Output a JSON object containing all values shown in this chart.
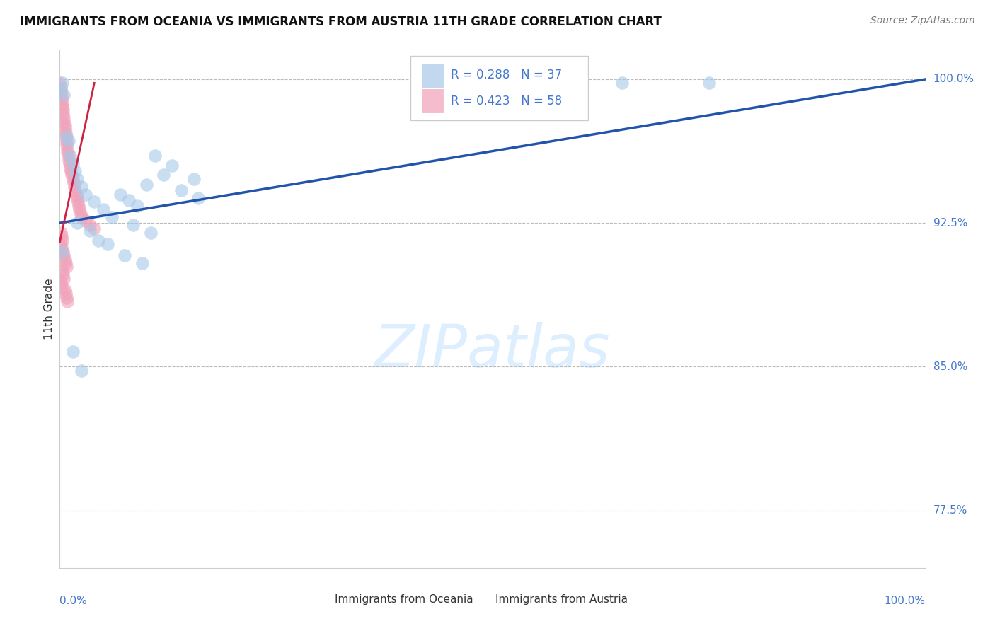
{
  "title": "IMMIGRANTS FROM OCEANIA VS IMMIGRANTS FROM AUSTRIA 11TH GRADE CORRELATION CHART",
  "source_text": "Source: ZipAtlas.com",
  "ylabel": "11th Grade",
  "legend_blue_r": "R = 0.288",
  "legend_blue_n": "N = 37",
  "legend_pink_r": "R = 0.423",
  "legend_pink_n": "N = 58",
  "legend_label_blue": "Immigrants from Oceania",
  "legend_label_pink": "Immigrants from Austria",
  "blue_color": "#a8c8e8",
  "pink_color": "#f0a0b8",
  "trendline_blue_color": "#2255aa",
  "trendline_pink_color": "#cc2244",
  "watermark_color": "#ddeeff",
  "xmin": 0.0,
  "xmax": 1.0,
  "ymin": 0.745,
  "ymax": 1.015,
  "ytick_100": 1.0,
  "ytick_925": 0.925,
  "ytick_85": 0.85,
  "ytick_775": 0.775,
  "blue_x": [
    0.001,
    0.003,
    0.005,
    0.008,
    0.01,
    0.012,
    0.015,
    0.018,
    0.02,
    0.025,
    0.03,
    0.04,
    0.05,
    0.06,
    0.07,
    0.08,
    0.09,
    0.1,
    0.12,
    0.14,
    0.16,
    0.13,
    0.11,
    0.155,
    0.02,
    0.035,
    0.045,
    0.055,
    0.075,
    0.095,
    0.65,
    0.75,
    0.015,
    0.025,
    0.085,
    0.105,
    0.003
  ],
  "blue_y": [
    0.995,
    0.998,
    0.992,
    0.97,
    0.968,
    0.96,
    0.956,
    0.952,
    0.948,
    0.944,
    0.94,
    0.936,
    0.932,
    0.928,
    0.94,
    0.937,
    0.934,
    0.945,
    0.95,
    0.942,
    0.938,
    0.955,
    0.96,
    0.948,
    0.925,
    0.921,
    0.916,
    0.914,
    0.908,
    0.904,
    0.998,
    0.998,
    0.858,
    0.848,
    0.924,
    0.92,
    0.91
  ],
  "pink_x": [
    0.0,
    0.001,
    0.001,
    0.002,
    0.002,
    0.003,
    0.003,
    0.004,
    0.004,
    0.005,
    0.005,
    0.006,
    0.006,
    0.007,
    0.007,
    0.008,
    0.008,
    0.009,
    0.009,
    0.01,
    0.01,
    0.011,
    0.012,
    0.013,
    0.014,
    0.015,
    0.016,
    0.017,
    0.018,
    0.019,
    0.02,
    0.021,
    0.022,
    0.023,
    0.024,
    0.025,
    0.03,
    0.035,
    0.04,
    0.001,
    0.002,
    0.003,
    0.001,
    0.002,
    0.004,
    0.005,
    0.006,
    0.007,
    0.008,
    0.003,
    0.004,
    0.005,
    0.001,
    0.002,
    0.006,
    0.007,
    0.008,
    0.009
  ],
  "pink_y": [
    0.998,
    0.996,
    0.994,
    0.992,
    0.99,
    0.988,
    0.986,
    0.984,
    0.982,
    0.98,
    0.978,
    0.976,
    0.974,
    0.972,
    0.97,
    0.968,
    0.966,
    0.964,
    0.962,
    0.96,
    0.958,
    0.956,
    0.954,
    0.952,
    0.95,
    0.948,
    0.946,
    0.944,
    0.942,
    0.94,
    0.938,
    0.936,
    0.934,
    0.932,
    0.93,
    0.928,
    0.926,
    0.924,
    0.922,
    0.92,
    0.918,
    0.916,
    0.914,
    0.912,
    0.91,
    0.908,
    0.906,
    0.904,
    0.902,
    0.9,
    0.898,
    0.896,
    0.894,
    0.892,
    0.89,
    0.888,
    0.886,
    0.884
  ],
  "blue_trendline_x": [
    0.0,
    1.0
  ],
  "blue_trendline_y": [
    0.925,
    1.0
  ],
  "pink_trendline_x": [
    0.0,
    0.04
  ],
  "pink_trendline_y": [
    0.915,
    0.998
  ]
}
